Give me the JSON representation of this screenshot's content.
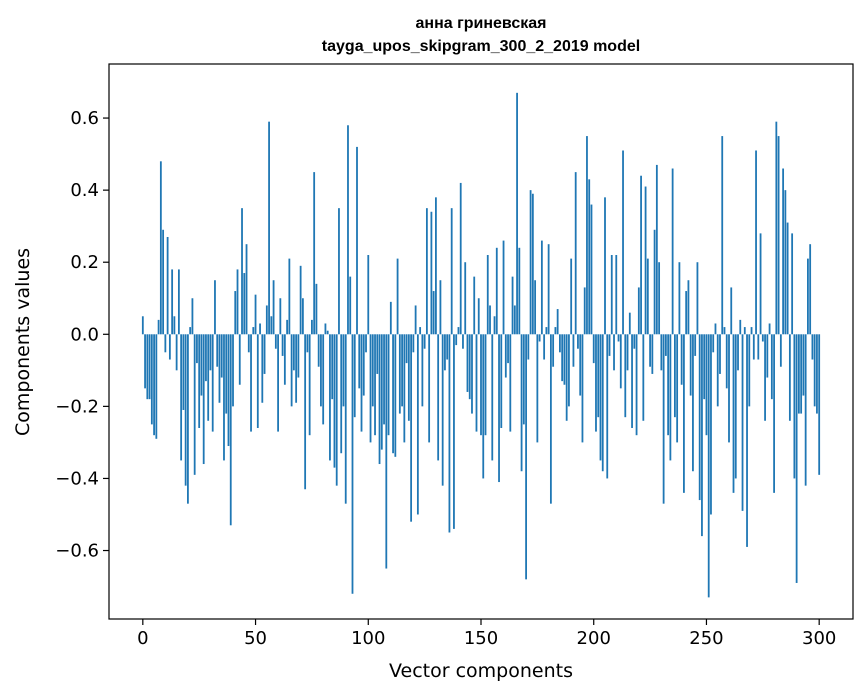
{
  "chart_data": {
    "type": "bar",
    "title": "анна гриневская",
    "subtitle": "tayga_upos_skipgram_300_2_2019 model",
    "xlabel": "Vector components",
    "ylabel": "Components values",
    "xlim": [
      -15,
      315
    ],
    "ylim": [
      -0.79,
      0.75
    ],
    "xticks": [
      0,
      50,
      100,
      150,
      200,
      250,
      300
    ],
    "xtick_labels": [
      "0",
      "50",
      "100",
      "150",
      "200",
      "250",
      "300"
    ],
    "yticks": [
      -0.6,
      -0.4,
      -0.2,
      0.0,
      0.2,
      0.4,
      0.6
    ],
    "ytick_labels": [
      "−0.6",
      "−0.4",
      "−0.2",
      "0.0",
      "0.2",
      "0.4",
      "0.6"
    ],
    "bar_color": "#1f77b4",
    "grid": false,
    "values": [
      0.05,
      -0.15,
      -0.18,
      -0.18,
      -0.25,
      -0.28,
      -0.29,
      0.04,
      0.48,
      0.29,
      -0.05,
      0.27,
      -0.07,
      0.18,
      0.05,
      -0.1,
      0.18,
      -0.35,
      -0.21,
      -0.42,
      -0.47,
      0.02,
      0.1,
      -0.39,
      -0.08,
      -0.26,
      -0.17,
      -0.36,
      -0.13,
      -0.24,
      -0.1,
      -0.27,
      0.15,
      -0.09,
      -0.19,
      -0.12,
      -0.35,
      -0.22,
      -0.31,
      -0.53,
      -0.2,
      0.12,
      0.18,
      -0.14,
      0.35,
      0.17,
      0.25,
      -0.05,
      -0.27,
      0.02,
      0.11,
      -0.26,
      0.03,
      -0.19,
      -0.11,
      0.08,
      0.59,
      0.05,
      0.15,
      -0.04,
      -0.27,
      0.1,
      -0.06,
      -0.14,
      0.04,
      0.21,
      -0.2,
      -0.1,
      -0.19,
      -0.12,
      0.19,
      0.1,
      -0.43,
      -0.05,
      -0.28,
      0.04,
      0.45,
      0.14,
      -0.09,
      -0.2,
      -0.25,
      0.03,
      0.01,
      -0.35,
      -0.18,
      -0.37,
      -0.42,
      0.35,
      -0.33,
      -0.2,
      -0.47,
      0.58,
      0.16,
      -0.72,
      -0.23,
      0.52,
      -0.15,
      -0.27,
      -0.17,
      -0.05,
      0.22,
      -0.3,
      -0.2,
      -0.28,
      -0.11,
      -0.36,
      -0.32,
      -0.25,
      -0.65,
      -0.28,
      0.09,
      -0.33,
      -0.34,
      0.21,
      -0.22,
      -0.2,
      -0.3,
      -0.08,
      -0.24,
      -0.52,
      -0.05,
      0.08,
      -0.5,
      0.02,
      -0.2,
      -0.04,
      0.35,
      -0.3,
      0.34,
      0.12,
      0.38,
      -0.35,
      0.15,
      -0.42,
      -0.1,
      -0.07,
      -0.55,
      0.35,
      -0.54,
      -0.03,
      0.02,
      0.42,
      -0.04,
      0.2,
      -0.16,
      -0.18,
      -0.22,
      0.16,
      -0.27,
      0.1,
      -0.28,
      -0.4,
      -0.28,
      0.22,
      0.08,
      -0.35,
      0.05,
      0.24,
      -0.41,
      -0.26,
      0.26,
      -0.12,
      -0.08,
      -0.27,
      0.16,
      0.08,
      0.67,
      0.24,
      -0.38,
      -0.25,
      -0.68,
      -0.07,
      0.4,
      0.39,
      0.15,
      -0.3,
      -0.02,
      0.26,
      -0.07,
      0.02,
      0.25,
      -0.47,
      -0.09,
      0.02,
      0.07,
      -0.05,
      -0.13,
      -0.14,
      -0.24,
      -0.2,
      0.21,
      -0.09,
      0.45,
      -0.04,
      -0.17,
      -0.3,
      0.13,
      0.55,
      0.43,
      0.36,
      -0.08,
      -0.27,
      -0.23,
      -0.35,
      -0.38,
      0.38,
      -0.4,
      -0.06,
      0.22,
      -0.1,
      0.22,
      -0.02,
      -0.15,
      0.51,
      -0.23,
      -0.1,
      0.06,
      -0.26,
      -0.04,
      -0.28,
      0.13,
      0.44,
      -0.24,
      0.41,
      0.21,
      -0.09,
      -0.11,
      0.29,
      0.47,
      0.2,
      -0.1,
      -0.47,
      -0.06,
      -0.28,
      -0.35,
      0.46,
      -0.23,
      -0.3,
      0.2,
      -0.14,
      -0.44,
      0.12,
      0.15,
      -0.17,
      -0.38,
      -0.06,
      0.2,
      -0.46,
      -0.56,
      -0.18,
      -0.28,
      -0.73,
      -0.5,
      -0.05,
      0.03,
      -0.2,
      -0.11,
      0.55,
      0.02,
      -0.15,
      -0.3,
      0.13,
      -0.44,
      -0.4,
      -0.1,
      0.04,
      -0.49,
      0.02,
      -0.59,
      -0.2,
      0.02,
      -0.07,
      0.51,
      -0.07,
      0.28,
      -0.02,
      -0.24,
      -0.12,
      0.03,
      -0.18,
      -0.44,
      0.59,
      0.55,
      -0.09,
      0.46,
      0.4,
      0.31,
      -0.24,
      0.28,
      -0.4,
      -0.69,
      -0.22,
      -0.22,
      -0.17,
      -0.42,
      0.21,
      0.25,
      -0.07,
      -0.2,
      -0.22,
      -0.39
    ]
  }
}
